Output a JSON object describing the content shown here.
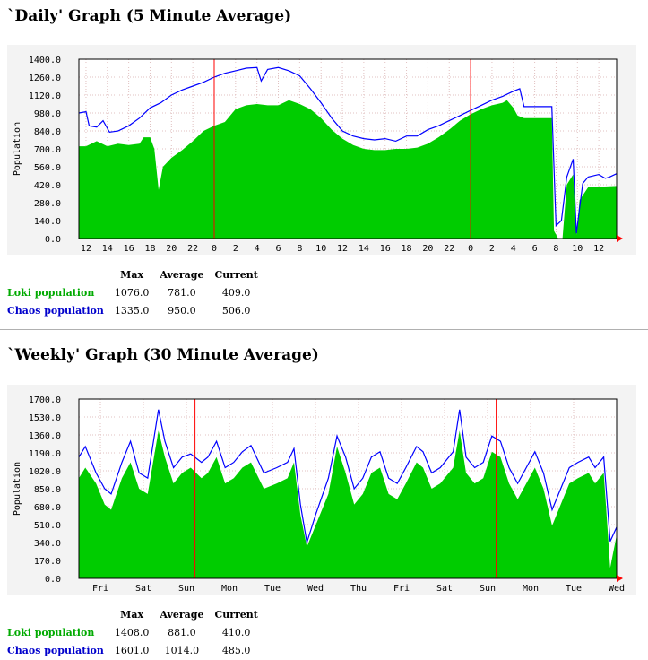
{
  "daily": {
    "title": "`Daily' Graph (5 Minute Average)",
    "stats": {
      "headers": [
        "Max",
        "Average",
        "Current"
      ],
      "rows": [
        {
          "label": "Loki population",
          "color": "#00aa00",
          "max": "1076.0",
          "average": "781.0",
          "current": "409.0"
        },
        {
          "label": "Chaos population",
          "color": "#0000cc",
          "max": "1335.0",
          "average": "950.0",
          "current": "506.0"
        }
      ]
    }
  },
  "weekly": {
    "title": "`Weekly' Graph (30 Minute Average)",
    "stats": {
      "headers": [
        "Max",
        "Average",
        "Current"
      ],
      "rows": [
        {
          "label": "Loki population",
          "color": "#00aa00",
          "max": "1408.0",
          "average": "881.0",
          "current": "410.0"
        },
        {
          "label": "Chaos population",
          "color": "#0000cc",
          "max": "1601.0",
          "average": "1014.0",
          "current": "485.0"
        }
      ]
    }
  },
  "colors": {
    "loki": "#00cc00",
    "chaos": "#0000ff",
    "marker": "#ff0000",
    "grid": "#e0c0c0"
  },
  "chart_data": [
    {
      "type": "area",
      "ylabel": "Population",
      "ylim": [
        0,
        1400
      ],
      "yticks": [
        "0.0",
        "140.0",
        "280.0",
        "420.0",
        "560.0",
        "700.0",
        "840.0",
        "980.0",
        "1120.0",
        "1260.0",
        "1400.0"
      ],
      "xticks": [
        "12",
        "14",
        "16",
        "18",
        "20",
        "22",
        "0",
        "2",
        "4",
        "6",
        "8",
        "10",
        "12",
        "14",
        "16",
        "18",
        "20",
        "22",
        "0",
        "2",
        "4",
        "6",
        "8",
        "10",
        "12"
      ],
      "x_range": [
        11.333,
        61.667
      ],
      "markers": [
        24,
        48
      ],
      "grid": true,
      "series": [
        {
          "name": "Loki population",
          "kind": "area",
          "points": [
            [
              11.333,
              720
            ],
            [
              12,
              720
            ],
            [
              13,
              760
            ],
            [
              14,
              720
            ],
            [
              15,
              740
            ],
            [
              16,
              730
            ],
            [
              17,
              740
            ],
            [
              17.4,
              790
            ],
            [
              18,
              790
            ],
            [
              18.4,
              700
            ],
            [
              18.8,
              380
            ],
            [
              19.2,
              560
            ],
            [
              20,
              630
            ],
            [
              21,
              690
            ],
            [
              22,
              760
            ],
            [
              23,
              840
            ],
            [
              24,
              880
            ],
            [
              25,
              910
            ],
            [
              26,
              1010
            ],
            [
              27,
              1040
            ],
            [
              28,
              1050
            ],
            [
              29,
              1040
            ],
            [
              30,
              1040
            ],
            [
              31,
              1080
            ],
            [
              32,
              1050
            ],
            [
              33,
              1010
            ],
            [
              34,
              940
            ],
            [
              35,
              850
            ],
            [
              36,
              780
            ],
            [
              37,
              730
            ],
            [
              38,
              700
            ],
            [
              39,
              690
            ],
            [
              40,
              690
            ],
            [
              41,
              700
            ],
            [
              42,
              700
            ],
            [
              43,
              710
            ],
            [
              44,
              740
            ],
            [
              45,
              790
            ],
            [
              46,
              850
            ],
            [
              47,
              920
            ],
            [
              48,
              970
            ],
            [
              49,
              1010
            ],
            [
              50,
              1040
            ],
            [
              51,
              1060
            ],
            [
              51.4,
              1080
            ],
            [
              52,
              1020
            ],
            [
              52.4,
              960
            ],
            [
              53,
              940
            ],
            [
              55,
              940
            ],
            [
              55.6,
              940
            ],
            [
              55.8,
              60
            ],
            [
              56.2,
              0
            ],
            [
              56.6,
              0
            ],
            [
              57,
              420
            ],
            [
              57.6,
              500
            ],
            [
              57.9,
              30
            ],
            [
              58.2,
              300
            ],
            [
              59,
              400
            ],
            [
              61.667,
              410
            ]
          ]
        },
        {
          "name": "Chaos population",
          "kind": "line",
          "points": [
            [
              11.333,
              980
            ],
            [
              12,
              990
            ],
            [
              12.3,
              880
            ],
            [
              13,
              870
            ],
            [
              13.6,
              920
            ],
            [
              14.2,
              830
            ],
            [
              15,
              840
            ],
            [
              16,
              880
            ],
            [
              17,
              940
            ],
            [
              18,
              1020
            ],
            [
              19,
              1060
            ],
            [
              20,
              1120
            ],
            [
              21,
              1160
            ],
            [
              22,
              1190
            ],
            [
              23,
              1220
            ],
            [
              24,
              1260
            ],
            [
              25,
              1290
            ],
            [
              26,
              1310
            ],
            [
              27,
              1330
            ],
            [
              28,
              1335
            ],
            [
              28.4,
              1230
            ],
            [
              29,
              1320
            ],
            [
              30,
              1335
            ],
            [
              31,
              1310
            ],
            [
              32,
              1270
            ],
            [
              33,
              1170
            ],
            [
              34,
              1060
            ],
            [
              35,
              940
            ],
            [
              36,
              840
            ],
            [
              37,
              800
            ],
            [
              38,
              780
            ],
            [
              39,
              770
            ],
            [
              40,
              780
            ],
            [
              41,
              760
            ],
            [
              42,
              800
            ],
            [
              43,
              800
            ],
            [
              44,
              850
            ],
            [
              45,
              880
            ],
            [
              46,
              920
            ],
            [
              47,
              960
            ],
            [
              48,
              1000
            ],
            [
              49,
              1040
            ],
            [
              50,
              1080
            ],
            [
              51,
              1110
            ],
            [
              52,
              1150
            ],
            [
              52.6,
              1170
            ],
            [
              53,
              1030
            ],
            [
              54,
              1030
            ],
            [
              55,
              1030
            ],
            [
              55.6,
              1030
            ],
            [
              56,
              100
            ],
            [
              56.5,
              140
            ],
            [
              57,
              480
            ],
            [
              57.6,
              620
            ],
            [
              57.9,
              40
            ],
            [
              58.5,
              430
            ],
            [
              59,
              480
            ],
            [
              60,
              500
            ],
            [
              60.6,
              470
            ],
            [
              61,
              480
            ],
            [
              61.667,
              506
            ]
          ]
        }
      ]
    },
    {
      "type": "area",
      "ylabel": "Population",
      "ylim": [
        0,
        1700
      ],
      "yticks": [
        "0.0",
        "170.0",
        "340.0",
        "510.0",
        "680.0",
        "850.0",
        "1020.0",
        "1190.0",
        "1360.0",
        "1530.0",
        "1700.0"
      ],
      "xticks": [
        "Fri",
        "Sat",
        "Sun",
        "Mon",
        "Tue",
        "Wed",
        "Thu",
        "Fri",
        "Sat",
        "Sun",
        "Mon",
        "Tue",
        "Wed"
      ],
      "x_range": [
        0,
        12.5
      ],
      "markers": [
        2.7,
        9.7
      ],
      "grid": true,
      "series": [
        {
          "name": "Loki population",
          "kind": "area",
          "points": [
            [
              0,
              950
            ],
            [
              0.15,
              1050
            ],
            [
              0.4,
              900
            ],
            [
              0.6,
              700
            ],
            [
              0.75,
              650
            ],
            [
              1.0,
              950
            ],
            [
              1.2,
              1100
            ],
            [
              1.4,
              850
            ],
            [
              1.6,
              800
            ],
            [
              1.85,
              1400
            ],
            [
              2.0,
              1150
            ],
            [
              2.2,
              900
            ],
            [
              2.4,
              1000
            ],
            [
              2.6,
              1050
            ],
            [
              2.85,
              950
            ],
            [
              3.0,
              1000
            ],
            [
              3.2,
              1150
            ],
            [
              3.4,
              900
            ],
            [
              3.6,
              950
            ],
            [
              3.8,
              1050
            ],
            [
              4.0,
              1100
            ],
            [
              4.3,
              850
            ],
            [
              4.6,
              900
            ],
            [
              4.85,
              950
            ],
            [
              5.0,
              1100
            ],
            [
              5.15,
              600
            ],
            [
              5.3,
              300
            ],
            [
              5.5,
              500
            ],
            [
              5.8,
              800
            ],
            [
              6.0,
              1250
            ],
            [
              6.2,
              1000
            ],
            [
              6.4,
              700
            ],
            [
              6.6,
              800
            ],
            [
              6.8,
              1000
            ],
            [
              7.0,
              1050
            ],
            [
              7.2,
              800
            ],
            [
              7.4,
              750
            ],
            [
              7.6,
              900
            ],
            [
              7.85,
              1100
            ],
            [
              8.0,
              1050
            ],
            [
              8.2,
              850
            ],
            [
              8.4,
              900
            ],
            [
              8.7,
              1050
            ],
            [
              8.85,
              1400
            ],
            [
              9.0,
              1000
            ],
            [
              9.2,
              900
            ],
            [
              9.4,
              950
            ],
            [
              9.6,
              1200
            ],
            [
              9.8,
              1150
            ],
            [
              10.0,
              900
            ],
            [
              10.2,
              750
            ],
            [
              10.4,
              900
            ],
            [
              10.6,
              1050
            ],
            [
              10.8,
              850
            ],
            [
              11.0,
              500
            ],
            [
              11.2,
              700
            ],
            [
              11.4,
              900
            ],
            [
              11.6,
              950
            ],
            [
              11.85,
              1000
            ],
            [
              12.0,
              900
            ],
            [
              12.2,
              1000
            ],
            [
              12.35,
              100
            ],
            [
              12.5,
              410
            ]
          ]
        },
        {
          "name": "Chaos population",
          "kind": "line",
          "points": [
            [
              0,
              1150
            ],
            [
              0.15,
              1250
            ],
            [
              0.4,
              1000
            ],
            [
              0.6,
              850
            ],
            [
              0.75,
              800
            ],
            [
              1.0,
              1100
            ],
            [
              1.2,
              1300
            ],
            [
              1.4,
              1000
            ],
            [
              1.6,
              950
            ],
            [
              1.85,
              1600
            ],
            [
              2.0,
              1300
            ],
            [
              2.2,
              1050
            ],
            [
              2.4,
              1150
            ],
            [
              2.6,
              1180
            ],
            [
              2.85,
              1100
            ],
            [
              3.0,
              1150
            ],
            [
              3.2,
              1300
            ],
            [
              3.4,
              1050
            ],
            [
              3.6,
              1100
            ],
            [
              3.8,
              1200
            ],
            [
              4.0,
              1260
            ],
            [
              4.3,
              1000
            ],
            [
              4.6,
              1050
            ],
            [
              4.85,
              1100
            ],
            [
              5.0,
              1230
            ],
            [
              5.15,
              700
            ],
            [
              5.3,
              340
            ],
            [
              5.5,
              600
            ],
            [
              5.8,
              950
            ],
            [
              6.0,
              1350
            ],
            [
              6.2,
              1150
            ],
            [
              6.4,
              850
            ],
            [
              6.6,
              950
            ],
            [
              6.8,
              1150
            ],
            [
              7.0,
              1200
            ],
            [
              7.2,
              950
            ],
            [
              7.4,
              900
            ],
            [
              7.6,
              1050
            ],
            [
              7.85,
              1250
            ],
            [
              8.0,
              1200
            ],
            [
              8.2,
              1000
            ],
            [
              8.4,
              1050
            ],
            [
              8.7,
              1200
            ],
            [
              8.85,
              1600
            ],
            [
              9.0,
              1150
            ],
            [
              9.2,
              1050
            ],
            [
              9.4,
              1100
            ],
            [
              9.6,
              1350
            ],
            [
              9.8,
              1300
            ],
            [
              10.0,
              1050
            ],
            [
              10.2,
              900
            ],
            [
              10.4,
              1050
            ],
            [
              10.6,
              1200
            ],
            [
              10.8,
              1000
            ],
            [
              11.0,
              650
            ],
            [
              11.2,
              850
            ],
            [
              11.4,
              1050
            ],
            [
              11.6,
              1100
            ],
            [
              11.85,
              1150
            ],
            [
              12.0,
              1050
            ],
            [
              12.2,
              1150
            ],
            [
              12.35,
              350
            ],
            [
              12.5,
              485
            ]
          ]
        }
      ]
    }
  ]
}
